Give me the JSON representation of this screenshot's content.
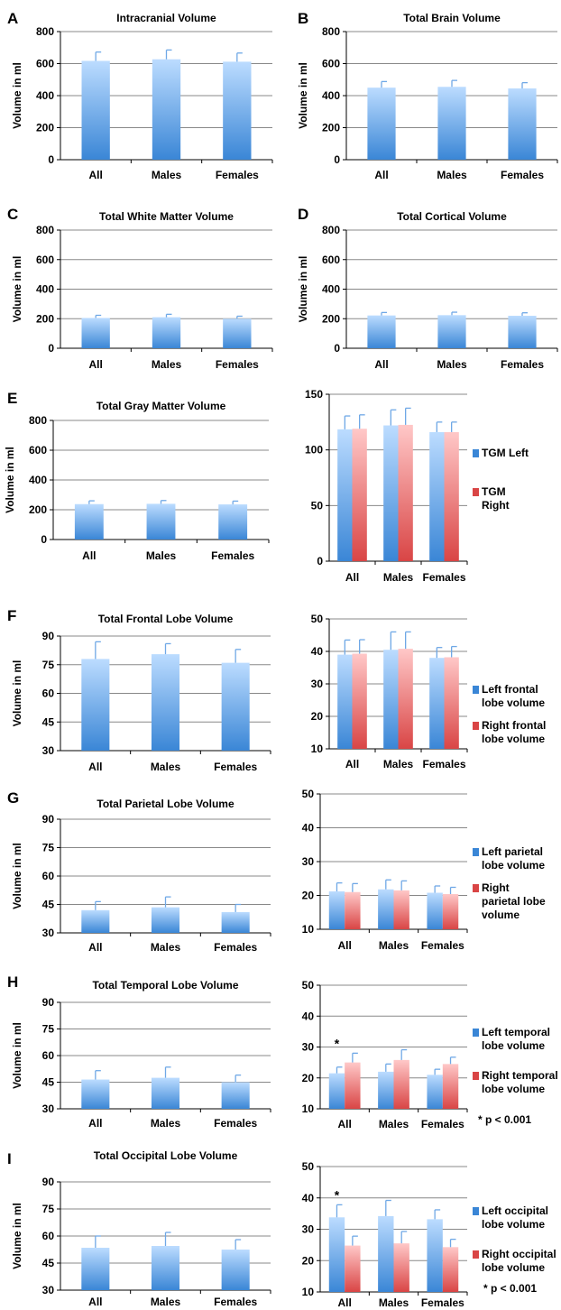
{
  "figure": {
    "label_colors": {
      "blue_top": "#bcdcff",
      "blue_bottom": "#3a86d6",
      "red_top": "#ffc8c8",
      "red_bottom": "#d94545",
      "grid": "#888888",
      "error_bar": "#6fa8e6"
    }
  },
  "chart_data": [
    {
      "id": "A",
      "panel_letter": "A",
      "type": "bar",
      "title": "Intracranial Volume",
      "ylabel": "Volume in ml",
      "categories": [
        "All",
        "Males",
        "Females"
      ],
      "values": [
        617,
        627,
        612
      ],
      "errors": [
        55,
        58,
        54
      ],
      "ylim": [
        0,
        800
      ],
      "yticks": [
        0,
        200,
        400,
        600,
        800
      ],
      "grid": true
    },
    {
      "id": "B",
      "panel_letter": "B",
      "type": "bar",
      "title": "Total Brain Volume",
      "ylabel": "Volume in ml",
      "categories": [
        "All",
        "Males",
        "Females"
      ],
      "values": [
        450,
        455,
        445
      ],
      "errors": [
        38,
        40,
        36
      ],
      "ylim": [
        0,
        800
      ],
      "yticks": [
        0,
        200,
        400,
        600,
        800
      ],
      "grid": true
    },
    {
      "id": "C",
      "panel_letter": "C",
      "type": "bar",
      "title": "Total White Matter Volume",
      "ylabel": "Volume in ml",
      "categories": [
        "All",
        "Males",
        "Females"
      ],
      "values": [
        205,
        210,
        200
      ],
      "errors": [
        18,
        20,
        17
      ],
      "ylim": [
        0,
        800
      ],
      "yticks": [
        0,
        200,
        400,
        600,
        800
      ],
      "grid": true
    },
    {
      "id": "D",
      "panel_letter": "D",
      "type": "bar",
      "title": "Total Cortical Volume",
      "ylabel": "Volume in ml",
      "categories": [
        "All",
        "Males",
        "Females"
      ],
      "values": [
        222,
        224,
        220
      ],
      "errors": [
        20,
        20,
        20
      ],
      "ylim": [
        0,
        800
      ],
      "yticks": [
        0,
        200,
        400,
        600,
        800
      ],
      "grid": true
    },
    {
      "id": "E1",
      "panel_letter": "E",
      "type": "bar",
      "title": "Total Gray Matter Volume",
      "ylabel": "Volume in ml",
      "categories": [
        "All",
        "Males",
        "Females"
      ],
      "values": [
        238,
        240,
        236
      ],
      "errors": [
        22,
        22,
        22
      ],
      "ylim": [
        0,
        800
      ],
      "yticks": [
        0,
        200,
        400,
        600,
        800
      ],
      "grid": true
    },
    {
      "id": "E2",
      "panel_letter": "",
      "type": "bar",
      "title": "",
      "ylabel": "",
      "categories": [
        "All",
        "Males",
        "Females"
      ],
      "series": [
        {
          "name": "TGM Left",
          "values": [
            118.5,
            122,
            116
          ],
          "errors": [
            12,
            14,
            9
          ]
        },
        {
          "name": "TGM Right",
          "values": [
            119,
            122.5,
            116
          ],
          "errors": [
            12.5,
            15,
            9
          ]
        }
      ],
      "ylim": [
        0,
        150
      ],
      "yticks": [
        0,
        50,
        100,
        150
      ],
      "grid": true,
      "legend": "right"
    },
    {
      "id": "F1",
      "panel_letter": "F",
      "type": "bar",
      "title": "Total Frontal Lobe Volume",
      "ylabel": "Volume in ml",
      "categories": [
        "All",
        "Males",
        "Females"
      ],
      "values": [
        78,
        80.5,
        76
      ],
      "errors": [
        9,
        5.5,
        7
      ],
      "ylim": [
        30,
        90
      ],
      "yticks": [
        30,
        45,
        60,
        75,
        90
      ],
      "grid": true
    },
    {
      "id": "F2",
      "panel_letter": "",
      "type": "bar",
      "title": "",
      "ylabel": "",
      "categories": [
        "All",
        "Males",
        "Females"
      ],
      "series": [
        {
          "name": "Left frontal lobe volume",
          "values": [
            39,
            40.5,
            38
          ],
          "errors": [
            4.5,
            5.5,
            3.2
          ]
        },
        {
          "name": "Right frontal lobe volume",
          "values": [
            39.3,
            40.8,
            38.2
          ],
          "errors": [
            4.3,
            5.2,
            3.3
          ]
        }
      ],
      "ylim": [
        10,
        50
      ],
      "yticks": [
        10,
        20,
        30,
        40,
        50
      ],
      "grid": true,
      "legend": "right"
    },
    {
      "id": "G1",
      "panel_letter": "G",
      "type": "bar",
      "title": "Total Parietal Lobe Volume",
      "ylabel": "Volume in ml",
      "categories": [
        "All",
        "Males",
        "Females"
      ],
      "values": [
        42,
        43.5,
        41
      ],
      "errors": [
        4.5,
        5.5,
        4
      ],
      "ylim": [
        30,
        90
      ],
      "yticks": [
        30,
        45,
        60,
        75,
        90
      ],
      "grid": true
    },
    {
      "id": "G2",
      "panel_letter": "",
      "type": "bar",
      "title": "",
      "ylabel": "",
      "categories": [
        "All",
        "Males",
        "Females"
      ],
      "series": [
        {
          "name": "Left parietal lobe volume",
          "values": [
            21.2,
            21.8,
            20.8
          ],
          "errors": [
            2.5,
            2.8,
            2
          ]
        },
        {
          "name": "Right parietal lobe volume",
          "values": [
            21,
            21.5,
            20.4
          ],
          "errors": [
            2.5,
            2.8,
            2
          ]
        }
      ],
      "ylim": [
        10,
        50
      ],
      "yticks": [
        10,
        20,
        30,
        40,
        50
      ],
      "grid": true,
      "legend": "right"
    },
    {
      "id": "H1",
      "panel_letter": "H",
      "type": "bar",
      "title": "Total Temporal Lobe Volume",
      "ylabel": "Volume in ml",
      "categories": [
        "All",
        "Males",
        "Females"
      ],
      "values": [
        46.5,
        47.5,
        45
      ],
      "errors": [
        5,
        6,
        4
      ],
      "ylim": [
        30,
        90
      ],
      "yticks": [
        30,
        45,
        60,
        75,
        90
      ],
      "grid": true
    },
    {
      "id": "H2",
      "panel_letter": "",
      "type": "bar",
      "title": "",
      "ylabel": "",
      "categories": [
        "All",
        "Males",
        "Females"
      ],
      "series": [
        {
          "name": "Left temporal lobe volume",
          "values": [
            21.5,
            22,
            21
          ],
          "errors": [
            2,
            2.5,
            1.8
          ]
        },
        {
          "name": "Right temporal lobe volume",
          "values": [
            25,
            25.8,
            24.5
          ],
          "errors": [
            3,
            3.3,
            2.2
          ]
        }
      ],
      "ylim": [
        10,
        50
      ],
      "yticks": [
        10,
        20,
        30,
        40,
        50
      ],
      "grid": true,
      "legend": "right",
      "annotations": [
        {
          "text": "*",
          "category": "All"
        }
      ],
      "footnote": "*  p < 0.001"
    },
    {
      "id": "I1",
      "panel_letter": "I",
      "type": "bar",
      "title": "Total Occipital Lobe Volume",
      "ylabel": "Volume in ml",
      "categories": [
        "All",
        "Males",
        "Females"
      ],
      "values": [
        53.5,
        54.5,
        52.5
      ],
      "errors": [
        6.5,
        7.5,
        5.5
      ],
      "ylim": [
        30,
        90
      ],
      "yticks": [
        30,
        45,
        60,
        75,
        90
      ],
      "grid": true
    },
    {
      "id": "I2",
      "panel_letter": "",
      "type": "bar",
      "title": "",
      "ylabel": "",
      "categories": [
        "All",
        "Males",
        "Females"
      ],
      "series": [
        {
          "name": "Left occipital lobe volume",
          "values": [
            33.8,
            34.2,
            33.2
          ],
          "errors": [
            4,
            5,
            3
          ]
        },
        {
          "name": "Right occipital lobe volume",
          "values": [
            24.8,
            25.5,
            24.3
          ],
          "errors": [
            3,
            3.8,
            2.5
          ]
        }
      ],
      "ylim": [
        10,
        50
      ],
      "yticks": [
        10,
        20,
        30,
        40,
        50
      ],
      "grid": true,
      "legend": "right",
      "annotations": [
        {
          "text": "*",
          "category": "All"
        }
      ],
      "footnote": "*  p < 0.001"
    }
  ]
}
